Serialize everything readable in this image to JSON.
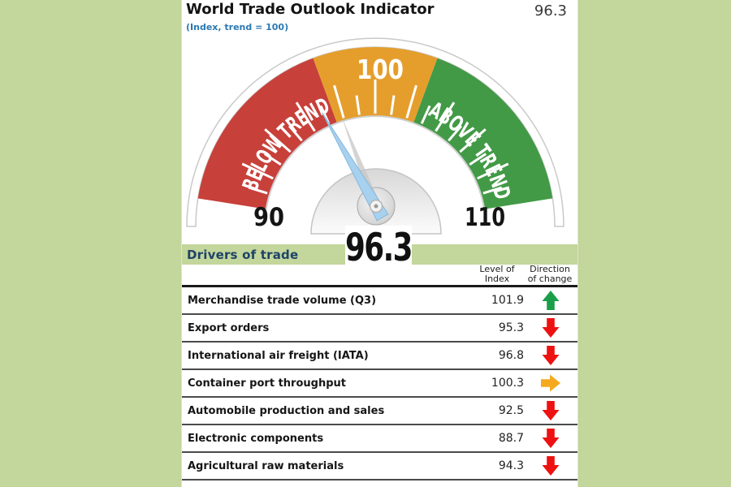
{
  "header": {
    "title": "World Trade Outlook Indicator",
    "value": "96.3",
    "subtitle": "(Index, trend = 100)"
  },
  "gauge": {
    "min": 90,
    "max": 110,
    "value": 96.3,
    "value_label": "96.3",
    "min_label": "90",
    "max_label": "110",
    "top_label": "100",
    "below_label": "BELOW TREND",
    "above_label": "ABOVE TREND",
    "zones": {
      "below_color": "#c8403a",
      "mid_color": "#e59e2c",
      "above_color": "#429a46"
    },
    "needle_color": "#a7d1ee"
  },
  "drivers": {
    "heading": "Drivers of trade",
    "col_level_line1": "Level of",
    "col_level_line2": "Index",
    "col_dir_line1": "Direction",
    "col_dir_line2": "of change"
  },
  "table": {
    "rows": [
      {
        "label": "Merchandise trade volume (Q3)",
        "value": "101.9",
        "direction": "up",
        "arrow_color": "#1a9e49"
      },
      {
        "label": "Export orders",
        "value": "95.3",
        "direction": "down",
        "arrow_color": "#ee1111"
      },
      {
        "label": "International air freight (IATA)",
        "value": "96.8",
        "direction": "down",
        "arrow_color": "#ee1111"
      },
      {
        "label": "Container port throughput",
        "value": "100.3",
        "direction": "right",
        "arrow_color": "#f5a91d"
      },
      {
        "label": "Automobile production and sales",
        "value": "92.5",
        "direction": "down",
        "arrow_color": "#ee1111"
      },
      {
        "label": "Electronic components",
        "value": "88.7",
        "direction": "down",
        "arrow_color": "#ee1111"
      },
      {
        "label": "Agricultural raw materials",
        "value": "94.3",
        "direction": "down",
        "arrow_color": "#ee1111"
      }
    ]
  },
  "chart_data": [
    {
      "type": "gauge",
      "title": "World Trade Outlook Indicator",
      "subtitle": "(Index, trend = 100)",
      "value": 96.3,
      "min": 90,
      "max": 110,
      "zones": [
        {
          "label": "BELOW TREND",
          "from": 90,
          "to": 97.5,
          "color": "#c8403a"
        },
        {
          "label": "100",
          "from": 97.5,
          "to": 102.5,
          "color": "#e59e2c"
        },
        {
          "label": "ABOVE TREND",
          "from": 102.5,
          "to": 110,
          "color": "#429a46"
        }
      ]
    },
    {
      "type": "table",
      "title": "Drivers of trade",
      "columns": [
        "Level of Index",
        "Direction of change"
      ],
      "rows": [
        [
          "Merchandise trade volume (Q3)",
          101.9,
          "up"
        ],
        [
          "Export orders",
          95.3,
          "down"
        ],
        [
          "International air freight (IATA)",
          96.8,
          "down"
        ],
        [
          "Container port throughput",
          100.3,
          "right"
        ],
        [
          "Automobile production and sales",
          92.5,
          "down"
        ],
        [
          "Electronic components",
          88.7,
          "down"
        ],
        [
          "Agricultural raw materials",
          94.3,
          "down"
        ]
      ]
    }
  ]
}
